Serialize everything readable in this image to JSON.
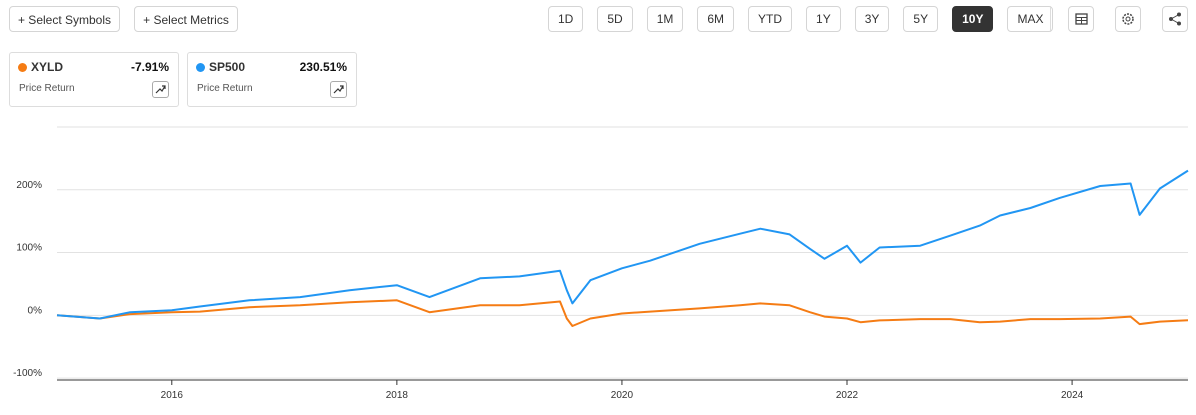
{
  "toolbar": {
    "select_symbols": "+ Select Symbols",
    "select_metrics": "+ Select Metrics",
    "ranges": [
      "1D",
      "5D",
      "1M",
      "6M",
      "YTD",
      "1Y",
      "3Y",
      "5Y",
      "10Y",
      "MAX"
    ],
    "active_range": "10Y"
  },
  "legend_cards": [
    {
      "return": "-7.91%",
      "metric": "Price Return"
    },
    {
      "return": "230.51%",
      "metric": "Price Return"
    }
  ],
  "chart_data": {
    "type": "line",
    "x": [
      2014.98,
      2015.36,
      2015.63,
      2016.0,
      2016.25,
      2016.69,
      2017.14,
      2017.58,
      2018.0,
      2018.29,
      2018.74,
      2019.09,
      2019.45,
      2019.51,
      2019.56,
      2019.72,
      2020.0,
      2020.25,
      2020.69,
      2021.05,
      2021.23,
      2021.49,
      2021.67,
      2021.8,
      2022.0,
      2022.12,
      2022.29,
      2022.65,
      2022.92,
      2023.18,
      2023.36,
      2023.63,
      2023.89,
      2024.25,
      2024.52,
      2024.6,
      2024.78,
      2025.03
    ],
    "series": [
      {
        "name": "XYLD",
        "color": "#f57c14",
        "values": [
          0,
          -5,
          2,
          5,
          6,
          13,
          16,
          21,
          24,
          5,
          16,
          16,
          22,
          -5,
          -17,
          -5,
          3,
          6,
          11,
          16,
          19,
          16,
          5,
          -2,
          -5,
          -11,
          -8,
          -6,
          -6,
          -11,
          -10,
          -6,
          -6,
          -5,
          -2,
          -14,
          -10,
          -7.91
        ]
      },
      {
        "name": "SP500",
        "color": "#2196f3",
        "values": [
          0,
          -5,
          5,
          8,
          14,
          24,
          29,
          40,
          48,
          29,
          59,
          62,
          71,
          40,
          19,
          56,
          75,
          87,
          114,
          130,
          138,
          129,
          106,
          90,
          111,
          84,
          108,
          111,
          127,
          143,
          159,
          171,
          187,
          206,
          210,
          160,
          202,
          230.51
        ]
      }
    ],
    "xlim": [
      2014.98,
      2025.03
    ],
    "xticks": [
      2016,
      2018,
      2020,
      2022,
      2024
    ],
    "ylim": [
      -103,
      300
    ],
    "yticks": [
      {
        "value": -100,
        "label": "-100%"
      },
      {
        "value": 0,
        "label": "0%"
      },
      {
        "value": 100,
        "label": "100%"
      },
      {
        "value": 200,
        "label": "200%"
      }
    ],
    "grid": true
  }
}
